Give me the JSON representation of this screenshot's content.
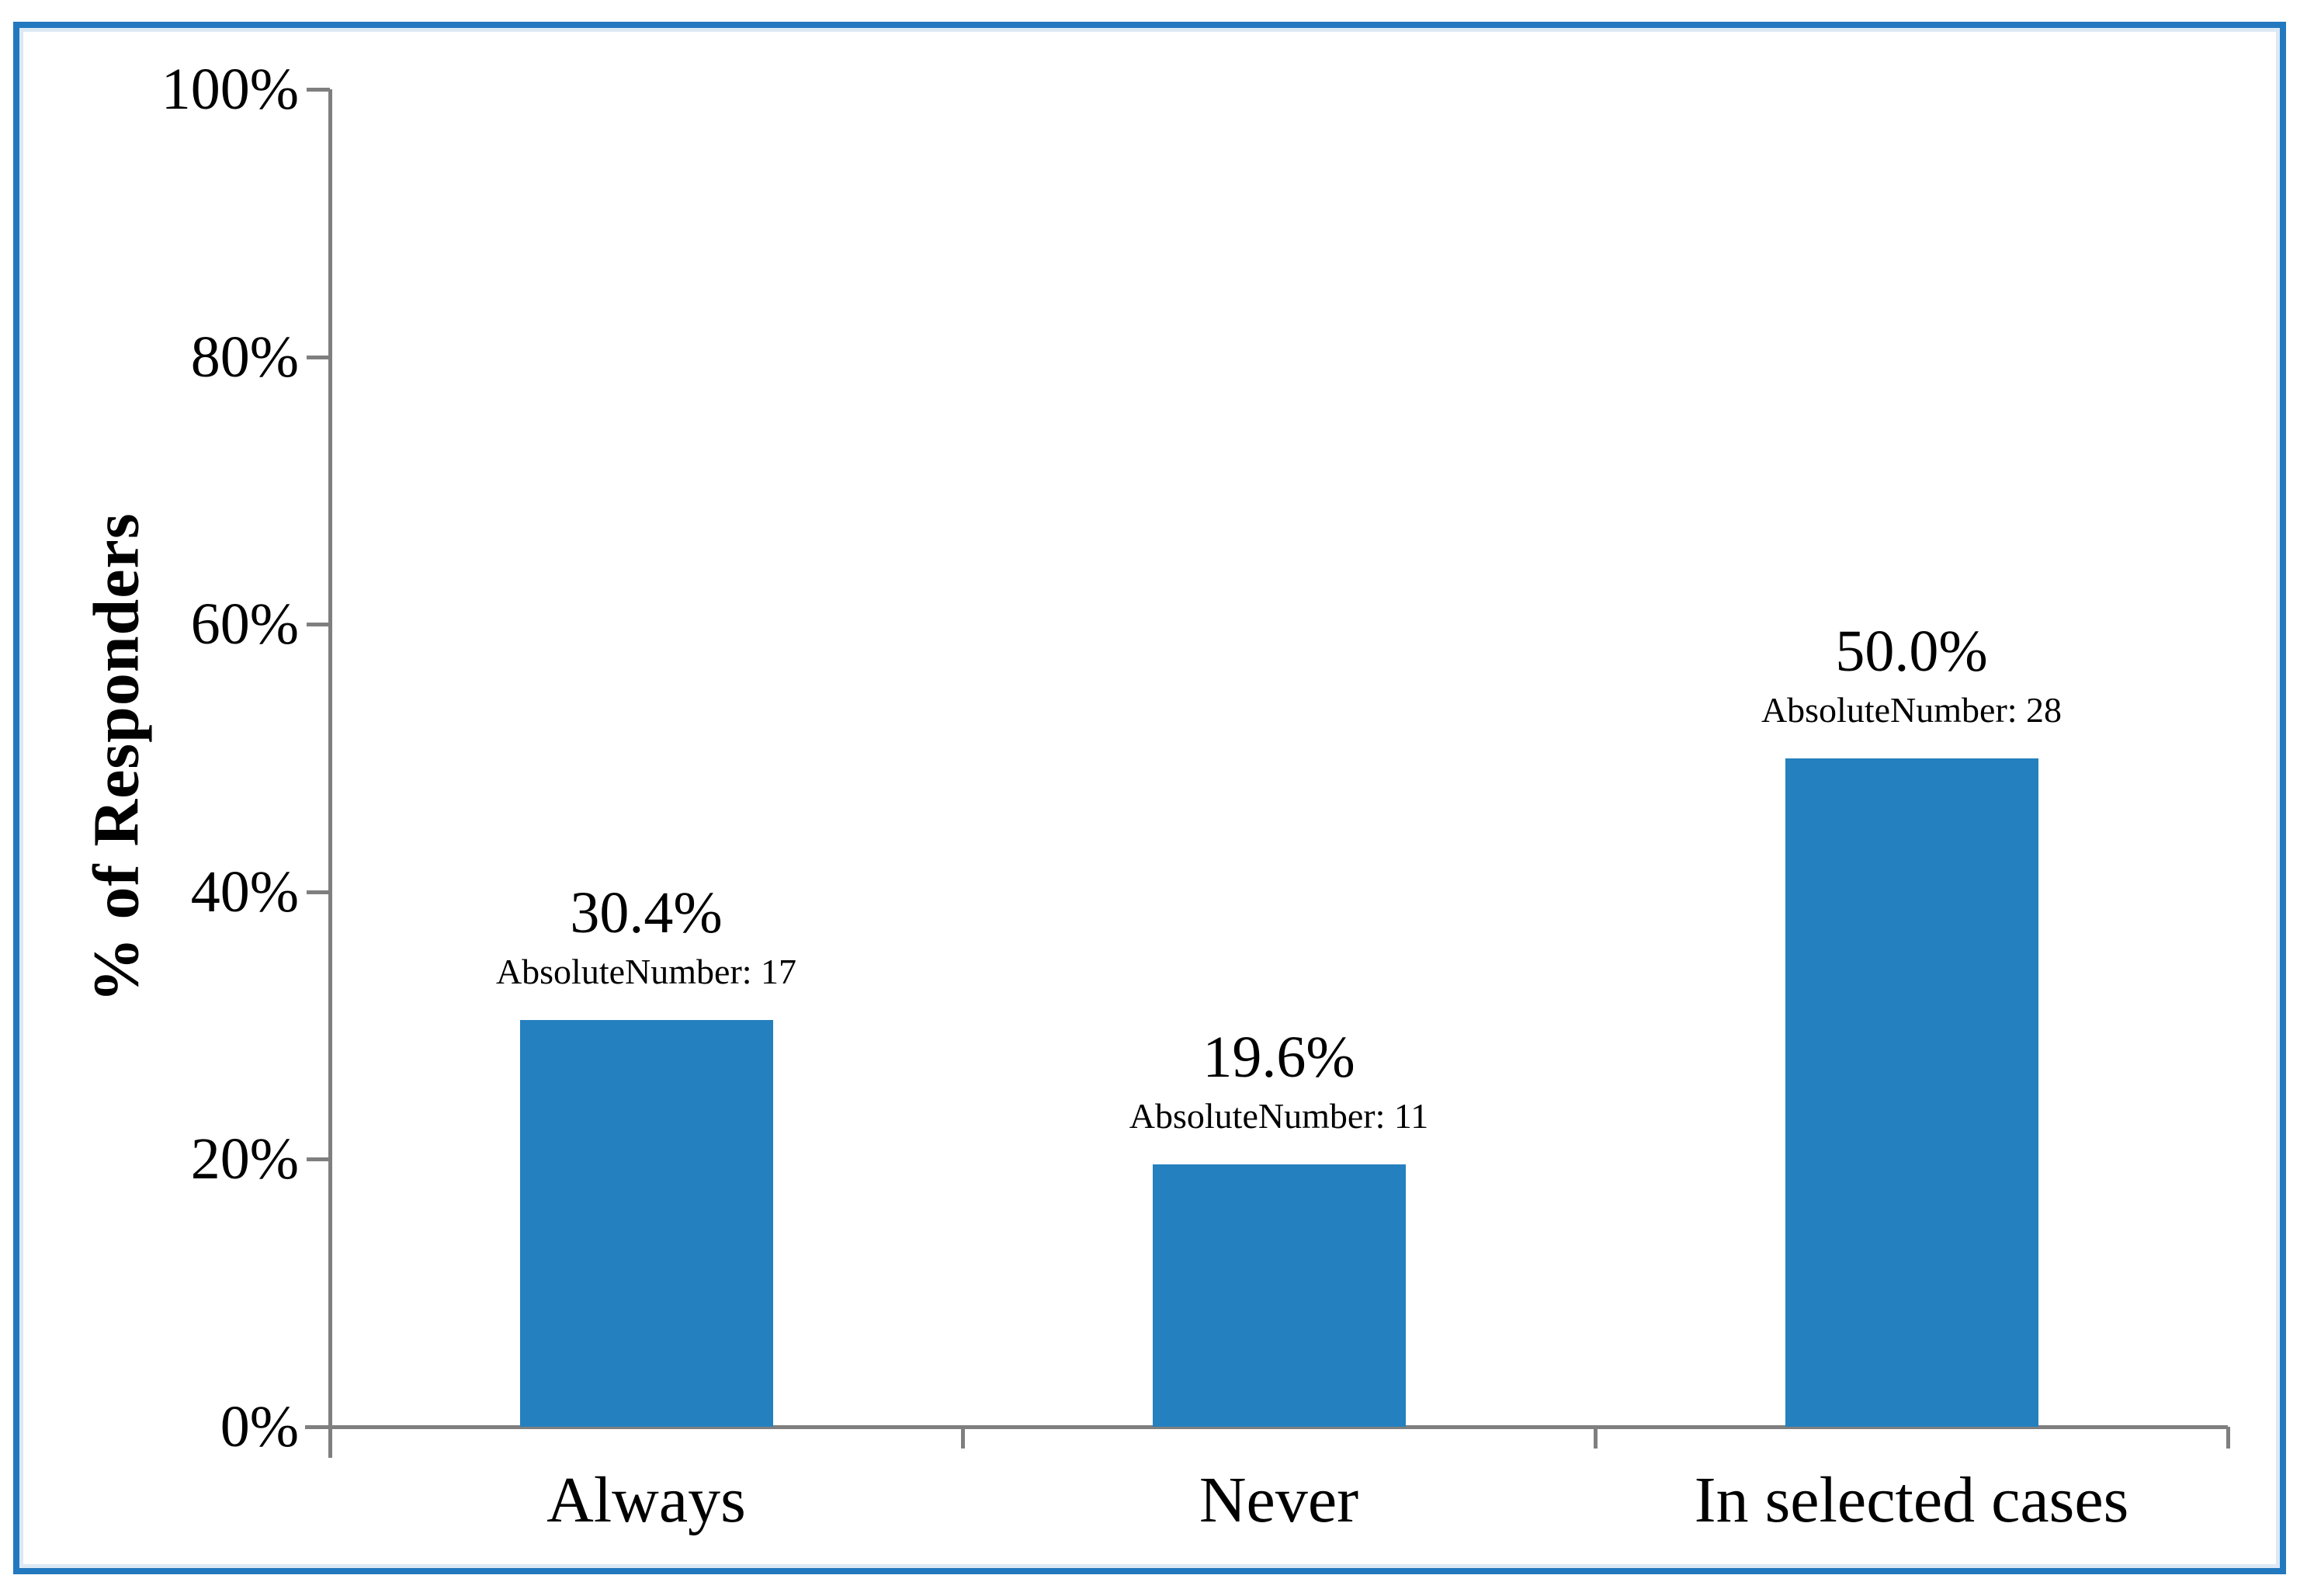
{
  "figure": {
    "border_color": "#2379bf",
    "background": "#ffffff"
  },
  "chart_data": {
    "type": "bar",
    "title": "",
    "xlabel": "",
    "ylabel": "% of Responders",
    "categories": [
      "Always",
      "Never",
      "In selected cases"
    ],
    "values": [
      30.4,
      19.6,
      50.0
    ],
    "value_labels": [
      "30.4%",
      "19.6%",
      "50.0%"
    ],
    "absolute_numbers": [
      17,
      11,
      28
    ],
    "absolute_labels": [
      "AbsoluteNumber: 17",
      "AbsoluteNumber: 11",
      "AbsoluteNumber: 28"
    ],
    "ylim": [
      0,
      100
    ],
    "yticks": [
      0,
      20,
      40,
      60,
      80,
      100
    ],
    "ytick_labels": [
      "0%",
      "20%",
      "40%",
      "60%",
      "80%",
      "100%"
    ],
    "bar_color": "#2480be",
    "axis_color": "#7f7f7f",
    "grid": false,
    "legend": null
  }
}
